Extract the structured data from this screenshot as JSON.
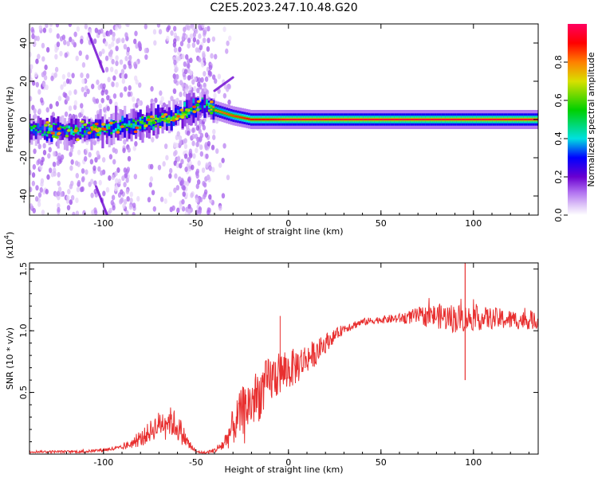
{
  "title": "C2E5.2023.247.10.48.G20",
  "chart_data": [
    {
      "type": "heatmap",
      "xlabel": "Height of straight line (km)",
      "ylabel": "Frequency (Hz)",
      "xlim": [
        -140,
        135
      ],
      "ylim": [
        -50,
        50
      ],
      "xticks": [
        -100,
        -50,
        0,
        50,
        100
      ],
      "yticks": [
        -40,
        -20,
        0,
        20,
        40
      ],
      "colorbar": {
        "label": "Normalized spectral amplitude",
        "range": [
          0.0,
          1.0
        ],
        "ticks": [
          0.0,
          0.2,
          0.4,
          0.6,
          0.8
        ],
        "tick_labels": [
          "0.0",
          "0.2",
          "0.4",
          "0.6",
          "0.8"
        ],
        "colormap_stops": [
          {
            "v": 0.0,
            "color": "#ffffff"
          },
          {
            "v": 0.05,
            "color": "#e0c8f8"
          },
          {
            "v": 0.12,
            "color": "#b070f0"
          },
          {
            "v": 0.2,
            "color": "#6a00d0"
          },
          {
            "v": 0.3,
            "color": "#0000ff"
          },
          {
            "v": 0.4,
            "color": "#00e0e0"
          },
          {
            "v": 0.55,
            "color": "#00d000"
          },
          {
            "v": 0.7,
            "color": "#d8e000"
          },
          {
            "v": 0.8,
            "color": "#ff8000"
          },
          {
            "v": 0.9,
            "color": "#ff0000"
          },
          {
            "v": 1.0,
            "color": "#ff0060"
          }
        ]
      },
      "ridge": {
        "description_points_x": [
          -140,
          -120,
          -100,
          -80,
          -60,
          -45,
          -40,
          -30,
          -20,
          -10,
          0,
          50,
          100,
          135
        ],
        "frequency_hz": [
          -5,
          -6,
          -5,
          -2,
          2,
          8,
          5,
          2,
          0,
          0,
          0,
          0,
          0,
          0
        ],
        "peak_amplitude": [
          0.45,
          0.45,
          0.5,
          0.55,
          0.6,
          0.4,
          0.8,
          0.85,
          0.9,
          0.9,
          0.95,
          0.95,
          0.95,
          0.95
        ]
      }
    },
    {
      "type": "line",
      "xlabel": "Height of straight line (km)",
      "ylabel": "SNR (10 * v/v)",
      "yscale_label": "(x10",
      "yscale_exponent": "4",
      "yscale_suffix": ")",
      "xlim": [
        -140,
        135
      ],
      "ylim": [
        0.0,
        1.55
      ],
      "xticks": [
        -100,
        -50,
        0,
        50,
        100
      ],
      "yticks": [
        0.5,
        1.0,
        1.5
      ],
      "ytick_labels": [
        "0.5",
        "1.0",
        "1.5"
      ],
      "line_color": "#e83030",
      "envelope_x": [
        -140,
        -110,
        -90,
        -80,
        -72,
        -66,
        -62,
        -58,
        -54,
        -50,
        -45,
        -40,
        -35,
        -30,
        -25,
        -20,
        -15,
        -10,
        -5,
        0,
        5,
        10,
        15,
        20,
        25,
        30,
        40,
        50,
        60,
        70,
        80,
        90,
        100,
        110,
        120,
        135
      ],
      "envelope_y": [
        0.02,
        0.02,
        0.05,
        0.12,
        0.22,
        0.28,
        0.25,
        0.18,
        0.08,
        0.02,
        0.01,
        0.03,
        0.08,
        0.22,
        0.35,
        0.42,
        0.5,
        0.6,
        0.65,
        0.68,
        0.72,
        0.78,
        0.82,
        0.9,
        0.96,
        1.02,
        1.07,
        1.09,
        1.1,
        1.12,
        1.12,
        1.1,
        1.1,
        1.1,
        1.09,
        1.08
      ],
      "noise_amplitude": [
        0.01,
        0.01,
        0.02,
        0.06,
        0.1,
        0.12,
        0.12,
        0.1,
        0.05,
        0.01,
        0.01,
        0.02,
        0.06,
        0.15,
        0.2,
        0.22,
        0.22,
        0.2,
        0.18,
        0.16,
        0.15,
        0.12,
        0.1,
        0.08,
        0.05,
        0.04,
        0.03,
        0.03,
        0.04,
        0.07,
        0.1,
        0.12,
        0.1,
        0.09,
        0.08,
        0.07
      ]
    }
  ]
}
